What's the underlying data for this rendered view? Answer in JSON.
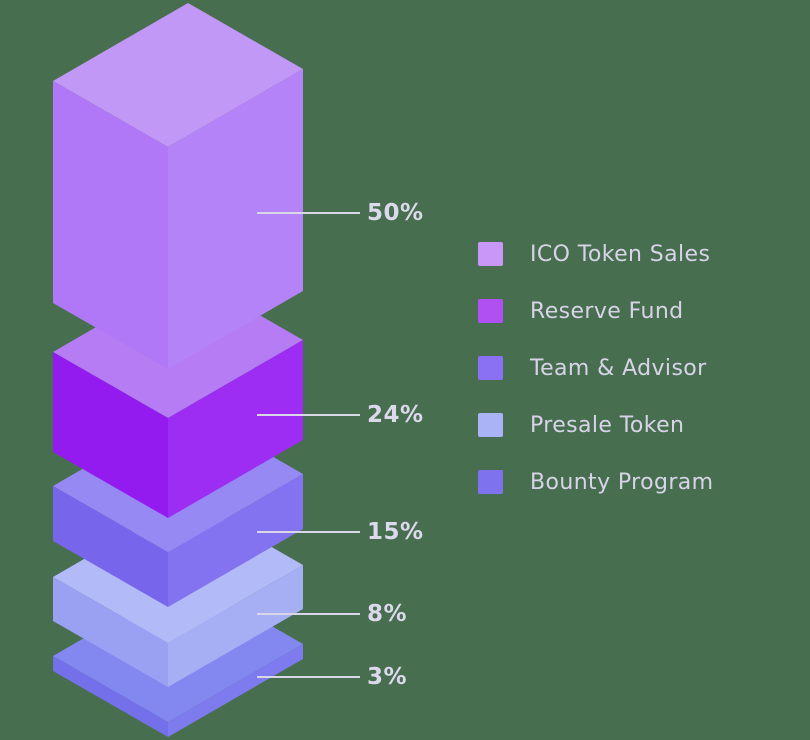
{
  "chart_data": {
    "type": "bar",
    "variant": "isometric-3d-stacked-tower",
    "title": "",
    "categories": [
      "ICO Token Sales",
      "Reserve Fund",
      "Team & Advisor",
      "Presale Token",
      "Bounty Program"
    ],
    "values": [
      50,
      24,
      15,
      8,
      3
    ],
    "labels": [
      "50%",
      "24%",
      "15%",
      "8%",
      "3%"
    ],
    "legend_position": "right",
    "segments": [
      {
        "key": "ico-token-sales",
        "label": "ICO Token Sales",
        "value": 50,
        "percent_label": "50%",
        "color_top": "#C298F7",
        "color_left": "#B077F6",
        "color_right": "#B583F8",
        "swatch": "#C897F8"
      },
      {
        "key": "reserve-fund",
        "label": "Reserve Fund",
        "value": 24,
        "percent_label": "24%",
        "color_top": "#B57CF4",
        "color_left": "#941BEF",
        "color_right": "#9D2DF2",
        "swatch": "#B04FF2"
      },
      {
        "key": "team-advisor",
        "label": "Team & Advisor",
        "value": 15,
        "percent_label": "15%",
        "color_top": "#9689F4",
        "color_left": "#7765EC",
        "color_right": "#8473F0",
        "swatch": "#8A70F2"
      },
      {
        "key": "presale-token",
        "label": "Presale Token",
        "value": 8,
        "percent_label": "8%",
        "color_top": "#B2BAF7",
        "color_left": "#9AA1F2",
        "color_right": "#A6AEF4",
        "swatch": "#AAB3F6"
      },
      {
        "key": "bounty-program",
        "label": "Bounty Program",
        "value": 3,
        "percent_label": "3%",
        "color_top": "#8388F1",
        "color_left": "#7470EA",
        "color_right": "#7D7BEE",
        "swatch": "#7E72EE"
      }
    ]
  },
  "colors": {
    "background": "#486E50",
    "label_text": "#DCD9EC",
    "legend_text": "#D8D4E8",
    "leader_line": "#D9D6E8"
  }
}
